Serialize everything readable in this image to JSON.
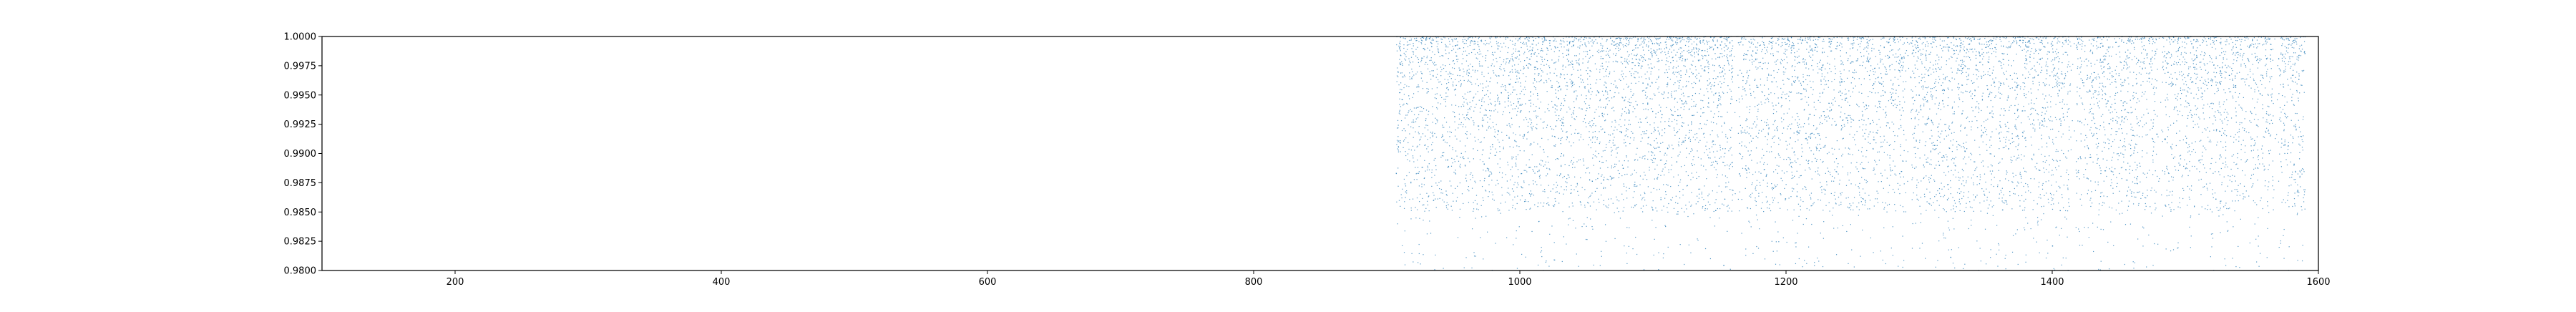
{
  "chart_data": {
    "type": "scatter",
    "title": "",
    "xlabel": "",
    "ylabel": "",
    "xlim": [
      100,
      1600
    ],
    "ylim": [
      0.98,
      1.0
    ],
    "x_ticks": [
      200,
      400,
      600,
      800,
      1000,
      1200,
      1400,
      1600
    ],
    "x_tick_labels": [
      "200",
      "400",
      "600",
      "800",
      "1000",
      "1200",
      "1400",
      "1600"
    ],
    "y_ticks": [
      0.98,
      0.9825,
      0.985,
      0.9875,
      0.99,
      0.9925,
      0.995,
      0.9975,
      1.0
    ],
    "y_tick_labels": [
      "0.9800",
      "0.9825",
      "0.9850",
      "0.9875",
      "0.9900",
      "0.9925",
      "0.9950",
      "0.9975",
      "1.0000"
    ],
    "grid": false,
    "legend": "none",
    "colors": {
      "points": "#1f77b4",
      "axes": "#000000",
      "background": "#ffffff"
    },
    "point_density": "dense",
    "series": [
      {
        "x_range": [
          907,
          1590
        ],
        "y_range": [
          0.98,
          1.0
        ],
        "y_concentration": [
          0.985,
          1.0
        ],
        "gaps_x": [
          1162,
          1292,
          1416,
          1481,
          1568
        ],
        "points": [
          [
            910,
            0.9952
          ],
          [
            915,
            0.9881
          ],
          [
            922,
            0.9968
          ],
          [
            930,
            0.9904
          ],
          [
            938,
            0.9927
          ],
          [
            946,
            0.9991
          ],
          [
            953,
            0.9872
          ],
          [
            961,
            0.9935
          ],
          [
            969,
            0.9958
          ],
          [
            977,
            0.9896
          ],
          [
            985,
            0.9982
          ],
          [
            992,
            0.9913
          ],
          [
            1000,
            0.9947
          ],
          [
            1008,
            0.9865
          ],
          [
            1016,
            0.9976
          ],
          [
            1024,
            0.9921
          ],
          [
            1031,
            0.9889
          ],
          [
            1039,
            0.9962
          ],
          [
            1047,
            0.9938
          ],
          [
            1055,
            0.9995
          ],
          [
            1063,
            0.9877
          ],
          [
            1070,
            0.9909
          ],
          [
            1078,
            0.9955
          ],
          [
            1086,
            0.9984
          ],
          [
            1094,
            0.9898
          ],
          [
            1102,
            0.9931
          ],
          [
            1109,
            0.9969
          ],
          [
            1117,
            0.9858
          ],
          [
            1125,
            0.9944
          ],
          [
            1133,
            0.9917
          ],
          [
            1141,
            0.9987
          ],
          [
            1148,
            0.9893
          ],
          [
            1156,
            0.9952
          ],
          [
            1170,
            0.9886
          ],
          [
            1178,
            0.9972
          ],
          [
            1186,
            0.9908
          ],
          [
            1194,
            0.9833
          ],
          [
            1202,
            0.9949
          ],
          [
            1210,
            0.9925
          ],
          [
            1218,
            0.9991
          ],
          [
            1226,
            0.9871
          ],
          [
            1234,
            0.9937
          ],
          [
            1242,
            0.9963
          ],
          [
            1250,
            0.9899
          ],
          [
            1258,
            0.9978
          ],
          [
            1266,
            0.9914
          ],
          [
            1274,
            0.9854
          ],
          [
            1282,
            0.9946
          ],
          [
            1300,
            0.9966
          ],
          [
            1308,
            0.9891
          ],
          [
            1316,
            0.9929
          ],
          [
            1324,
            0.9983
          ],
          [
            1332,
            0.9874
          ],
          [
            1340,
            0.9951
          ],
          [
            1348,
            0.9918
          ],
          [
            1356,
            0.9974
          ],
          [
            1364,
            0.9905
          ],
          [
            1372,
            0.9941
          ],
          [
            1380,
            0.9867
          ],
          [
            1388,
            0.9988
          ],
          [
            1396,
            0.9923
          ],
          [
            1404,
            0.9957
          ],
          [
            1411,
            0.9896
          ],
          [
            1422,
            0.9979
          ],
          [
            1430,
            0.9934
          ],
          [
            1438,
            0.9992
          ],
          [
            1446,
            0.9882
          ],
          [
            1454,
            0.9961
          ],
          [
            1462,
            0.9915
          ],
          [
            1470,
            0.9973
          ],
          [
            1476,
            0.9902
          ],
          [
            1488,
            0.9965
          ],
          [
            1496,
            0.9911
          ],
          [
            1504,
            0.9986
          ],
          [
            1512,
            0.9878
          ],
          [
            1520,
            0.9943
          ],
          [
            1528,
            0.9926
          ],
          [
            1536,
            0.9977
          ],
          [
            1544,
            0.9863
          ],
          [
            1552,
            0.9939
          ],
          [
            1560,
            0.9956
          ],
          [
            1574,
            0.9907
          ],
          [
            1580,
            0.9948
          ],
          [
            1586,
            0.9885
          ],
          [
            1589,
            0.9971
          ]
        ]
      }
    ]
  }
}
